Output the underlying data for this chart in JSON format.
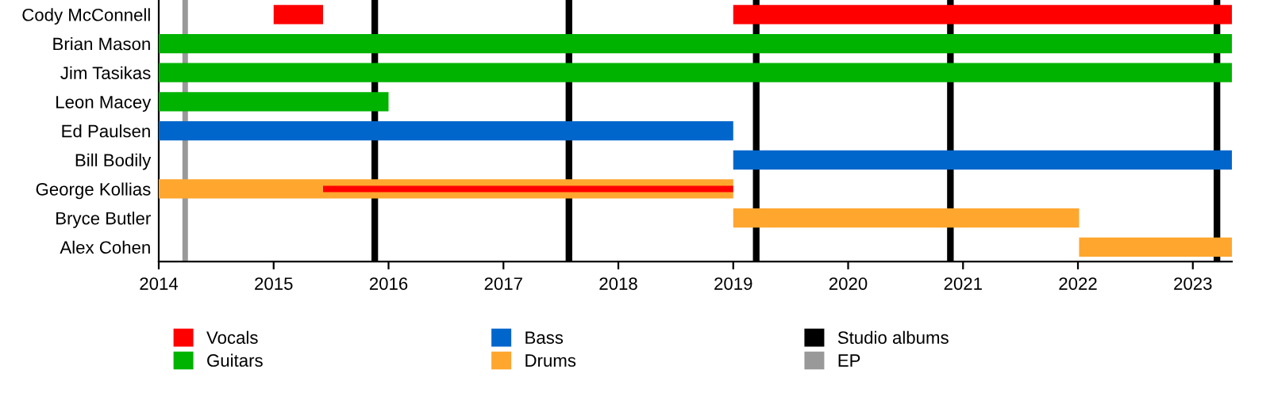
{
  "chart_data": {
    "type": "bar",
    "orientation": "horizontal",
    "categories": [
      "Cody McConnell",
      "Brian Mason",
      "Jim Tasikas",
      "Leon Macey",
      "Ed Paulsen",
      "Bill Bodily",
      "George Kollias",
      "Bryce Butler",
      "Alex Cohen"
    ],
    "series": [
      {
        "name": "Vocals",
        "color": "#ff0000",
        "base": [
          2015.0,
          null,
          null,
          null,
          null,
          null,
          null,
          null,
          null
        ],
        "values": [
          0.43,
          null,
          null,
          null,
          null,
          null,
          null,
          null,
          null
        ]
      },
      {
        "name": "Guitars",
        "color": "#00b300",
        "base": [
          null,
          2014,
          2014,
          2014,
          null,
          null,
          null,
          null,
          null
        ],
        "values": [
          null,
          9.34,
          9.34,
          2.0,
          null,
          null,
          null,
          null,
          null
        ]
      },
      {
        "name": "Bass",
        "color": "#0066cc",
        "base": [
          null,
          null,
          null,
          null,
          2014,
          2019,
          null,
          null,
          null
        ],
        "values": [
          null,
          null,
          null,
          null,
          5.0,
          4.34,
          null,
          null,
          null
        ]
      },
      {
        "name": "Drums",
        "color": "#ffa62f",
        "base": [
          null,
          null,
          null,
          null,
          null,
          null,
          2014,
          2019,
          2022.01
        ],
        "values": [
          null,
          null,
          null,
          null,
          null,
          null,
          5.0,
          3.01,
          1.33
        ]
      },
      {
        "color": "#ff0000",
        "base": [
          2019,
          null,
          null,
          null,
          null,
          null,
          2015.43,
          null,
          null
        ],
        "values": [
          4.34,
          null,
          null,
          null,
          null,
          null,
          3.57,
          null,
          null
        ]
      }
    ],
    "xlim": [
      2014,
      2023.34
    ],
    "xticks": [
      2014,
      2015,
      2016,
      2017,
      2018,
      2019,
      2020,
      2021,
      2022,
      2023
    ],
    "ref_lines": [
      {
        "axis": "x",
        "value": 2014.23,
        "label": "EP",
        "color": "#999999"
      },
      {
        "axis": "x",
        "value": 2015.88,
        "label": "Studio albums",
        "color": "#000000"
      },
      {
        "axis": "x",
        "value": 2017.57,
        "color": "#000000"
      },
      {
        "axis": "x",
        "value": 2019.2,
        "color": "#000000"
      },
      {
        "axis": "x",
        "value": 2020.89,
        "color": "#000000"
      },
      {
        "axis": "x",
        "value": 2023.21,
        "color": "#000000"
      }
    ],
    "grid": false,
    "legend": "bottom"
  }
}
